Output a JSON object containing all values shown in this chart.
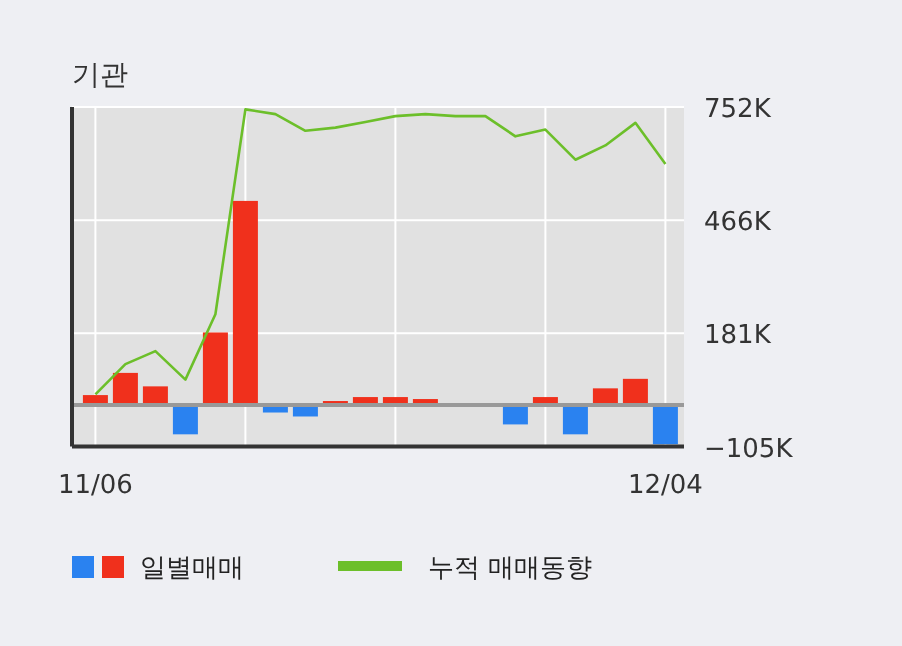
{
  "chart_data": {
    "type": "bar",
    "title": "기관",
    "categories": [
      "11/06",
      null,
      null,
      null,
      null,
      null,
      null,
      null,
      null,
      null,
      null,
      null,
      null,
      null,
      null,
      null,
      null,
      null,
      null,
      "12/04"
    ],
    "series": [
      {
        "name": "일별매매",
        "values": [
          25000,
          81000,
          47000,
          -74000,
          183000,
          515000,
          -19000,
          -29000,
          10000,
          20000,
          20000,
          15000,
          0,
          0,
          -49000,
          20000,
          -74000,
          42000,
          66000,
          -99000
        ],
        "colors": [
          "#f0301c",
          "#f0301c",
          "#f0301c",
          "#2a82f0",
          "#f0301c",
          "#f0301c",
          "#2a82f0",
          "#2a82f0",
          "#f0301c",
          "#f0301c",
          "#f0301c",
          "#f0301c",
          "#f0301c",
          "#f0301c",
          "#2a82f0",
          "#f0301c",
          "#2a82f0",
          "#f0301c",
          "#f0301c",
          "#2a82f0"
        ]
      },
      {
        "name": "누적 매매동향",
        "type": "line",
        "color": "#6cbf2a",
        "values": [
          27000,
          103000,
          136000,
          64000,
          229000,
          746000,
          734000,
          692000,
          700000,
          714000,
          729000,
          734000,
          729000,
          729000,
          678000,
          695000,
          619000,
          655000,
          712000,
          608000
        ]
      }
    ],
    "ylim": [
      -105000,
      752000
    ],
    "yticks": [
      {
        "value": 752000,
        "label": "752K"
      },
      {
        "value": 466000,
        "label": "466K"
      },
      {
        "value": 181000,
        "label": "181K"
      },
      {
        "value": -105000,
        "label": "−105K"
      }
    ],
    "ref_lines": [
      {
        "axis": "y",
        "value": 0,
        "color": "#999999"
      }
    ],
    "grid": true,
    "legend": "bottom"
  }
}
